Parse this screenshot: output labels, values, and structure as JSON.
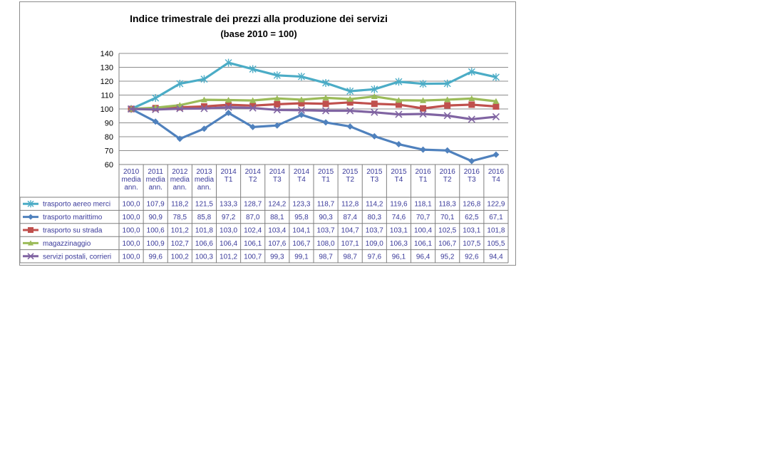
{
  "chart_data": {
    "type": "line",
    "title": "Indice trimestrale dei prezzi alla produzione dei servizi",
    "subtitle": "(base 2010 = 100)",
    "xlabel": "",
    "ylabel": "",
    "ylim": [
      60,
      140
    ],
    "yticks": [
      "60",
      "70",
      "80",
      "90",
      "100",
      "110",
      "120",
      "130",
      "140"
    ],
    "grid": true,
    "legend": "data-table-left",
    "categories": [
      [
        "2010",
        "media",
        "ann."
      ],
      [
        "2011",
        "media",
        "ann."
      ],
      [
        "2012",
        "media",
        "ann."
      ],
      [
        "2013",
        "media",
        "ann."
      ],
      [
        "2014",
        "T1"
      ],
      [
        "2014",
        "T2"
      ],
      [
        "2014",
        "T3"
      ],
      [
        "2014",
        "T4"
      ],
      [
        "2015",
        "T1"
      ],
      [
        "2015",
        "T2"
      ],
      [
        "2015",
        "T3"
      ],
      [
        "2015",
        "T4"
      ],
      [
        "2016",
        "T1"
      ],
      [
        "2016",
        "T2"
      ],
      [
        "2016",
        "T3"
      ],
      [
        "2016",
        "T4"
      ]
    ],
    "series": [
      {
        "name": "trasporto aereo merci",
        "color": "#4bacc6",
        "marker": "star",
        "values": [
          100.0,
          107.9,
          118.2,
          121.5,
          133.3,
          128.7,
          124.2,
          123.3,
          118.7,
          112.8,
          114.2,
          119.6,
          118.1,
          118.3,
          126.8,
          122.9
        ],
        "labels": [
          "100,0",
          "107,9",
          "118,2",
          "121,5",
          "133,3",
          "128,7",
          "124,2",
          "123,3",
          "118,7",
          "112,8",
          "114,2",
          "119,6",
          "118,1",
          "118,3",
          "126,8",
          "122,9"
        ]
      },
      {
        "name": "trasporto marittimo",
        "color": "#4f81bd",
        "marker": "diamond",
        "values": [
          100.0,
          90.9,
          78.5,
          85.8,
          97.2,
          87.0,
          88.1,
          95.8,
          90.3,
          87.4,
          80.3,
          74.6,
          70.7,
          70.1,
          62.5,
          67.1
        ],
        "labels": [
          "100,0",
          "90,9",
          "78,5",
          "85,8",
          "97,2",
          "87,0",
          "88,1",
          "95,8",
          "90,3",
          "87,4",
          "80,3",
          "74,6",
          "70,7",
          "70,1",
          "62,5",
          "67,1"
        ]
      },
      {
        "name": "trasporto su strada",
        "color": "#c0504d",
        "marker": "square",
        "values": [
          100.0,
          100.6,
          101.2,
          101.8,
          103.0,
          102.4,
          103.4,
          104.1,
          103.7,
          104.7,
          103.7,
          103.1,
          100.4,
          102.5,
          103.1,
          101.8
        ],
        "labels": [
          "100,0",
          "100,6",
          "101,2",
          "101,8",
          "103,0",
          "102,4",
          "103,4",
          "104,1",
          "103,7",
          "104,7",
          "103,7",
          "103,1",
          "100,4",
          "102,5",
          "103,1",
          "101,8"
        ]
      },
      {
        "name": "magazzinaggio",
        "color": "#9bbb59",
        "marker": "triangle",
        "values": [
          100.0,
          100.9,
          102.7,
          106.6,
          106.4,
          106.1,
          107.6,
          106.7,
          108.0,
          107.1,
          109.0,
          106.3,
          106.1,
          106.7,
          107.5,
          105.5
        ],
        "labels": [
          "100,0",
          "100,9",
          "102,7",
          "106,6",
          "106,4",
          "106,1",
          "107,6",
          "106,7",
          "108,0",
          "107,1",
          "109,0",
          "106,3",
          "106,1",
          "106,7",
          "107,5",
          "105,5"
        ]
      },
      {
        "name": "servizi postali, corrieri",
        "color": "#8064a2",
        "marker": "x",
        "values": [
          100.0,
          99.6,
          100.2,
          100.3,
          101.2,
          100.7,
          99.3,
          99.1,
          98.7,
          98.7,
          97.6,
          96.1,
          96.4,
          95.2,
          92.6,
          94.4
        ],
        "labels": [
          "100,0",
          "99,6",
          "100,2",
          "100,3",
          "101,2",
          "100,7",
          "99,3",
          "99,1",
          "98,7",
          "98,7",
          "97,6",
          "96,1",
          "96,4",
          "95,2",
          "92,6",
          "94,4"
        ]
      }
    ]
  }
}
